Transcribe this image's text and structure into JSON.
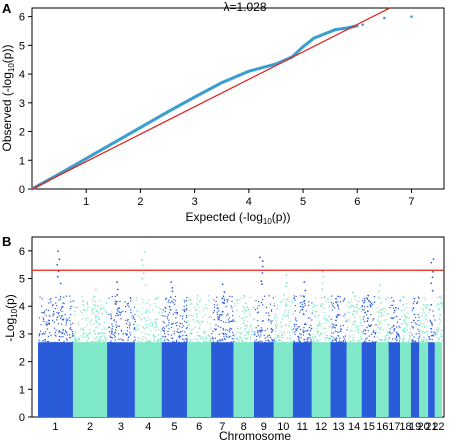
{
  "chart_data": [
    {
      "type": "scatter",
      "panel_label": "A",
      "title": "λ=1.028",
      "xlabel_main": "Expected (-log",
      "xlabel_sub": "10",
      "xlabel_tail": "(p))",
      "ylabel_main": "Observed (-log",
      "ylabel_sub": "10",
      "ylabel_tail": "(p))",
      "xlim": [
        0,
        7.6
      ],
      "ylim": [
        0,
        6.3
      ],
      "x_ticks": [
        "1",
        "2",
        "3",
        "4",
        "5",
        "6",
        "7"
      ],
      "y_ticks": [
        "0",
        "1",
        "2",
        "3",
        "4",
        "5",
        "6"
      ],
      "reference_line": {
        "from": [
          0,
          0
        ],
        "to": [
          6.6,
          6.3
        ],
        "color": "#e0241b"
      },
      "series": [
        {
          "color": "#3a9fcf",
          "x": [
            0.0,
            0.5,
            1.0,
            1.5,
            2.0,
            2.5,
            3.0,
            3.5,
            4.0,
            4.5,
            4.8,
            5.0,
            5.2,
            5.4,
            5.6,
            5.8,
            6.0,
            6.1,
            6.5,
            7.0
          ],
          "y": [
            0.0,
            0.52,
            1.06,
            1.6,
            2.14,
            2.68,
            3.2,
            3.7,
            4.1,
            4.35,
            4.6,
            4.95,
            5.25,
            5.4,
            5.55,
            5.6,
            5.68,
            5.72,
            5.95,
            6.0
          ]
        }
      ],
      "grid": false
    },
    {
      "type": "scatter",
      "panel_label": "B",
      "xlabel": "Chromosome",
      "ylabel_main": "-Log",
      "ylabel_sub": "10",
      "ylabel_tail": "(p)",
      "ylim": [
        0,
        6.5
      ],
      "y_ticks": [
        "0",
        "1",
        "2",
        "3",
        "4",
        "5",
        "6"
      ],
      "categories": [
        "1",
        "2",
        "3",
        "4",
        "5",
        "6",
        "7",
        "8",
        "9",
        "10",
        "11",
        "12",
        "13",
        "14",
        "15",
        "16",
        "17",
        "18",
        "19",
        "20",
        "21",
        "22"
      ],
      "x_tick_labels": [
        "1",
        "2",
        "3",
        "4",
        "5",
        "6",
        "7",
        "8",
        "9",
        "10",
        "11",
        "12",
        "13",
        "14",
        "15",
        "16",
        "17",
        "18",
        "19",
        "20",
        "21",
        "22"
      ],
      "threshold": {
        "y": 5.3,
        "color": "#e0241b"
      },
      "colors": {
        "odd": "#2a5bd8",
        "even": "#7fe8c8"
      },
      "peak_values": [
        6.0,
        4.6,
        4.9,
        6.0,
        5.0,
        4.4,
        4.8,
        4.4,
        5.9,
        5.2,
        4.9,
        5.3,
        4.5,
        4.6,
        4.5,
        4.8,
        4.3,
        4.4,
        4.4,
        4.2,
        5.8,
        4.2
      ],
      "grid": false
    }
  ]
}
